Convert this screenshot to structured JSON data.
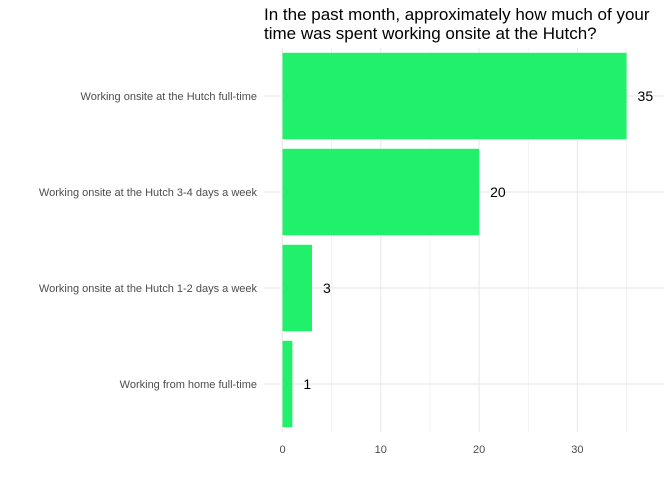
{
  "chart_data": {
    "type": "bar",
    "orientation": "horizontal",
    "title_lines": [
      "In the past month, approximately how much of your",
      "time was spent working onsite at the Hutch?"
    ],
    "categories": [
      "Working onsite at the Hutch full-time",
      "Working onsite at the Hutch 3-4 days a week",
      "Working onsite at the Hutch 1-2 days a week",
      "Working from home full-time"
    ],
    "values": [
      35,
      20,
      3,
      1
    ],
    "xlim": [
      0,
      36
    ],
    "xticks": [
      0,
      10,
      20,
      30
    ],
    "xlabel": "",
    "ylabel": "",
    "grid": true,
    "bar_color": "#21f06a",
    "grid_color": "#ebebeb",
    "label_color": "#4d4d4d"
  }
}
